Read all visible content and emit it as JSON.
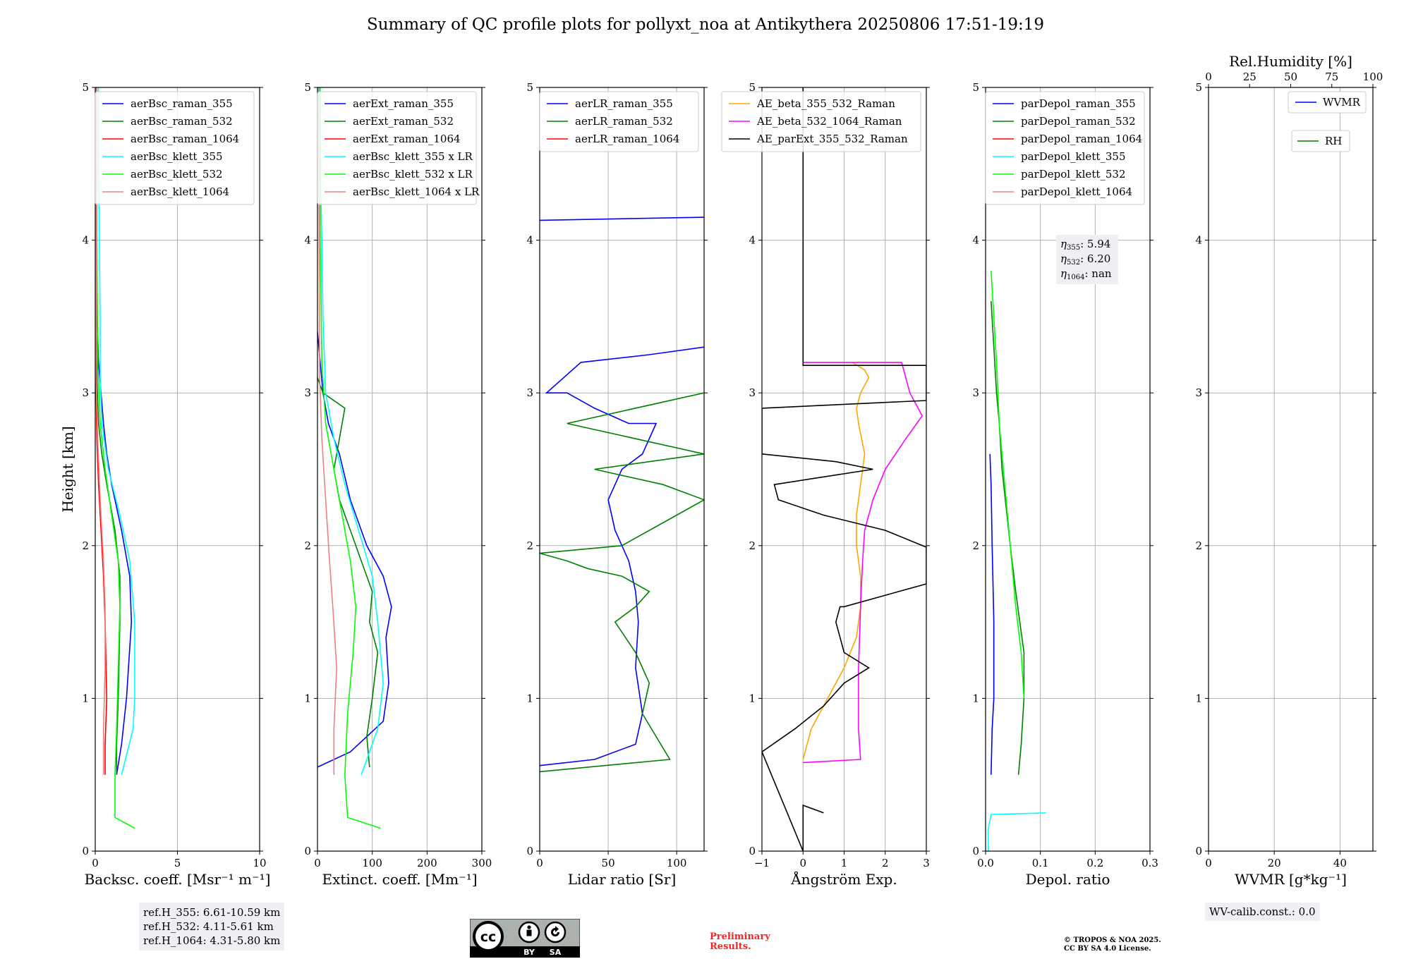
{
  "figure": {
    "title": "Summary of QC profile plots for pollyxt_noa at Antikythera 20250806 17:51-19:19"
  },
  "ref_box": {
    "line1": "ref.H_355: 6.61-10.59 km",
    "line2": "ref.H_532: 4.11-5.61 km",
    "line3": "ref.H_1064: 4.31-5.80 km"
  },
  "wv_calib": "WV-calib.const.: 0.0",
  "preliminary": {
    "line1": "Preliminary",
    "line2": "Results."
  },
  "copyright": {
    "line1": "© TROPOS & NOA 2025.",
    "line2": "CC BY SA 4.0 License."
  },
  "cc_badge": {
    "by": "BY",
    "sa": "SA",
    "cc": "cc"
  },
  "colors": {
    "blue": "#0000ff",
    "green": "#008000",
    "red": "#ff0000",
    "cyan": "#00ffff",
    "lime": "#00ff00",
    "salmon": "#f08080",
    "orange": "#ffa500",
    "magenta": "#ff00ff",
    "black": "#000000",
    "grid": "#b0b0b0"
  },
  "chart_data": [
    {
      "type": "line",
      "xlabel": "Backsc. coeff. [Msr⁻¹ m⁻¹]",
      "ylabel": "Height [km]",
      "xlim": [
        0,
        10
      ],
      "ylim": [
        0,
        5
      ],
      "xticks": [
        0,
        5,
        10
      ],
      "yticks": [
        0,
        1,
        2,
        3,
        4,
        5
      ],
      "grid": true,
      "legend_position": "top-right",
      "series": [
        {
          "name": "aerBsc_raman_355",
          "color": "blue",
          "x": [
            1.3,
            1.6,
            1.9,
            2.2,
            2.1,
            1.6,
            1.0,
            0.7,
            0.5,
            0.35,
            0.2,
            0.1,
            0.05,
            0.05
          ],
          "y": [
            0.5,
            0.7,
            1.0,
            1.5,
            1.8,
            2.1,
            2.4,
            2.6,
            2.8,
            3.0,
            3.2,
            3.5,
            4.0,
            5.0
          ]
        },
        {
          "name": "aerBsc_raman_532",
          "color": "green",
          "x": [
            1.3,
            1.3,
            1.4,
            1.5,
            1.5,
            1.2,
            0.7,
            0.4,
            0.2,
            0.1,
            0.05,
            0.05
          ],
          "y": [
            0.5,
            0.7,
            1.0,
            1.5,
            1.8,
            2.1,
            2.4,
            2.6,
            2.8,
            3.1,
            3.5,
            5.0
          ]
        },
        {
          "name": "aerBsc_raman_1064",
          "color": "red",
          "x": [
            0.6,
            0.6,
            0.7,
            0.6,
            0.5,
            0.35,
            0.2,
            0.1,
            0.05,
            0.05
          ],
          "y": [
            0.5,
            0.7,
            1.0,
            1.5,
            1.8,
            2.1,
            2.4,
            2.7,
            3.0,
            5.0
          ]
        },
        {
          "name": "aerBsc_klett_355",
          "color": "cyan",
          "x": [
            1.6,
            2.3,
            2.4,
            2.4,
            2.1,
            1.5,
            0.8,
            0.4,
            0.3,
            0.3,
            0.25,
            0.2,
            0.2
          ],
          "y": [
            0.5,
            0.8,
            1.0,
            1.5,
            1.9,
            2.2,
            2.5,
            2.8,
            3.1,
            3.5,
            4.0,
            4.5,
            5.0
          ]
        },
        {
          "name": "aerBsc_klett_532",
          "color": "lime",
          "x": [
            2.4,
            1.2,
            1.2,
            1.3,
            1.4,
            1.5,
            1.4,
            1.0,
            0.6,
            0.3,
            0.15,
            0.1,
            0.1
          ],
          "y": [
            0.15,
            0.22,
            0.5,
            0.8,
            1.2,
            1.6,
            1.9,
            2.2,
            2.5,
            2.8,
            3.2,
            4.0,
            5.0
          ]
        },
        {
          "name": "aerBsc_klett_1064",
          "color": "salmon",
          "x": [
            0.5,
            0.5,
            0.6,
            0.6,
            0.5,
            0.3,
            0.15,
            0.05,
            0.05
          ],
          "y": [
            0.5,
            0.8,
            1.2,
            1.6,
            1.9,
            2.3,
            2.7,
            3.1,
            5.0
          ]
        }
      ]
    },
    {
      "type": "line",
      "xlabel": "Extinct. coeff. [Mm⁻¹]",
      "xlim": [
        0,
        300
      ],
      "ylim": [
        0,
        5
      ],
      "xticks": [
        0,
        100,
        200,
        300
      ],
      "yticks": [
        0,
        1,
        2,
        3,
        4,
        5
      ],
      "grid": true,
      "legend_position": "top-right",
      "series": [
        {
          "name": "aerExt_raman_355",
          "color": "blue",
          "x": [
            0,
            60,
            120,
            130,
            125,
            135,
            120,
            90,
            60,
            40,
            20,
            10,
            5,
            0
          ],
          "y": [
            0.55,
            0.65,
            0.85,
            1.1,
            1.4,
            1.6,
            1.8,
            2.0,
            2.3,
            2.6,
            2.8,
            3.0,
            3.2,
            3.4
          ]
        },
        {
          "name": "aerExt_raman_532",
          "color": "green",
          "x": [
            95,
            90,
            100,
            110,
            95,
            100,
            80,
            60,
            40,
            30,
            40,
            50,
            10,
            0
          ],
          "y": [
            0.55,
            0.75,
            1.0,
            1.3,
            1.5,
            1.7,
            1.9,
            2.1,
            2.3,
            2.5,
            2.7,
            2.9,
            3.0,
            3.1
          ]
        },
        {
          "name": "aerExt_raman_1064",
          "color": "red",
          "x": [],
          "y": []
        },
        {
          "name": "aerBsc_klett_355 x LR",
          "color": "cyan",
          "x": [
            80,
            110,
            120,
            110,
            100,
            75,
            50,
            30,
            15,
            10,
            8,
            5,
            3
          ],
          "y": [
            0.5,
            0.8,
            1.1,
            1.5,
            1.8,
            2.1,
            2.4,
            2.7,
            3.0,
            3.5,
            4.0,
            4.5,
            5.0
          ]
        },
        {
          "name": "aerBsc_klett_532 x LR",
          "color": "lime",
          "x": [
            115,
            55,
            50,
            55,
            65,
            70,
            60,
            45,
            30,
            15,
            8,
            5,
            5
          ],
          "y": [
            0.15,
            0.22,
            0.5,
            0.9,
            1.3,
            1.6,
            1.9,
            2.2,
            2.5,
            2.8,
            3.2,
            4.0,
            5.0
          ]
        },
        {
          "name": "aerBsc_klett_1064 x LR",
          "color": "salmon",
          "x": [
            30,
            30,
            35,
            28,
            22,
            15,
            8,
            4,
            2
          ],
          "y": [
            0.5,
            0.8,
            1.2,
            1.6,
            1.9,
            2.3,
            2.7,
            3.1,
            5.0
          ]
        }
      ]
    },
    {
      "type": "line",
      "xlabel": "Lidar ratio [Sr]",
      "xlim": [
        0,
        120
      ],
      "ylim": [
        0,
        5
      ],
      "xticks": [
        0,
        50,
        100
      ],
      "yticks": [
        0,
        1,
        2,
        3,
        4,
        5
      ],
      "grid": true,
      "legend_position": "top-right",
      "series": [
        {
          "name": "aerLR_raman_355",
          "color": "blue",
          "x": [
            0,
            40,
            70,
            75,
            70,
            72,
            70,
            65,
            55,
            50,
            60,
            75,
            85,
            65,
            40,
            20,
            5,
            30,
            80,
            120
          ],
          "y": [
            0.56,
            0.6,
            0.7,
            0.9,
            1.2,
            1.5,
            1.7,
            1.9,
            2.1,
            2.3,
            2.5,
            2.6,
            2.8,
            2.8,
            2.9,
            3.0,
            3.0,
            3.2,
            3.25,
            3.3
          ]
        },
        {
          "name": "aerLR_raman_532",
          "color": "green",
          "x": [
            0,
            95,
            85,
            75,
            80,
            70,
            55,
            70,
            80,
            60,
            35,
            20,
            0,
            60,
            100,
            120,
            90,
            40,
            120,
            20,
            120
          ],
          "y": [
            0.52,
            0.6,
            0.75,
            0.9,
            1.1,
            1.3,
            1.5,
            1.6,
            1.7,
            1.8,
            1.85,
            1.9,
            1.95,
            2.0,
            2.2,
            2.3,
            2.4,
            2.5,
            2.6,
            2.8,
            3.0
          ]
        },
        {
          "name": "aerLR_raman_1064",
          "color": "red",
          "x": [],
          "y": []
        }
      ],
      "extra_segments": [
        {
          "color": "blue",
          "x": [
            0,
            120
          ],
          "y": [
            4.13,
            4.15
          ]
        }
      ]
    },
    {
      "type": "line",
      "xlabel": "Ångström Exp.",
      "xlim": [
        -1,
        3
      ],
      "ylim": [
        0,
        5
      ],
      "xticks": [
        -1,
        0,
        1,
        2,
        3
      ],
      "yticks": [
        0,
        1,
        2,
        3,
        4,
        5
      ],
      "grid": true,
      "legend_position": "top-right",
      "series": [
        {
          "name": "AE_beta_355_532_Raman",
          "color": "orange",
          "x": [
            0.0,
            0.2,
            0.6,
            1.0,
            1.3,
            1.4,
            1.4,
            1.3,
            1.3,
            1.4,
            1.5,
            1.35,
            1.3,
            1.4,
            1.6,
            1.5,
            1.2
          ],
          "y": [
            0.6,
            0.8,
            1.0,
            1.2,
            1.4,
            1.6,
            1.8,
            2.0,
            2.2,
            2.4,
            2.6,
            2.8,
            2.9,
            3.0,
            3.1,
            3.15,
            3.2
          ]
        },
        {
          "name": "AE_beta_532_1064_Raman",
          "color": "magenta",
          "x": [
            0.0,
            1.4,
            1.35,
            1.35,
            1.4,
            1.45,
            1.5,
            1.7,
            2.0,
            2.5,
            2.9,
            2.6,
            2.4,
            1.0,
            0.0
          ],
          "y": [
            0.58,
            0.6,
            0.8,
            1.2,
            1.6,
            1.9,
            2.1,
            2.3,
            2.5,
            2.7,
            2.85,
            3.0,
            3.2,
            3.2,
            3.2
          ]
        },
        {
          "name": "AE_parExt_355_532_Raman",
          "color": "black",
          "x": [
            0.5,
            0.0,
            0.0,
            -1.0,
            -0.2,
            0.5,
            1.0,
            1.6,
            1.0,
            0.8,
            0.9,
            1.0,
            3.0,
            3.0,
            2.0,
            0.5,
            -0.6,
            -0.7,
            0.5,
            1.7,
            0.8,
            -1.0,
            -1.0,
            3.0,
            3.0,
            0.0,
            0.0,
            0.0
          ],
          "y": [
            0.25,
            0.3,
            0.0,
            0.65,
            0.8,
            0.95,
            1.1,
            1.2,
            1.3,
            1.5,
            1.6,
            1.6,
            1.75,
            1.99,
            2.1,
            2.2,
            2.3,
            2.4,
            2.45,
            2.5,
            2.55,
            2.6,
            2.9,
            2.95,
            3.18,
            3.18,
            3.18,
            5.0
          ]
        }
      ]
    },
    {
      "type": "line",
      "xlabel": "Depol. ratio",
      "xlim": [
        0,
        0.3
      ],
      "ylim": [
        0,
        5
      ],
      "xticks": [
        0.0,
        0.1,
        0.2,
        0.3
      ],
      "xticklabels": [
        "0.0",
        "0.1",
        "0.2",
        "0.3"
      ],
      "yticks": [
        0,
        1,
        2,
        3,
        4,
        5
      ],
      "grid": true,
      "legend_position": "top-right",
      "annotation": {
        "eta355": "5.94",
        "eta532": "6.20",
        "eta1064": "nan"
      },
      "series": [
        {
          "name": "parDepol_raman_355",
          "color": "blue",
          "x": [
            0.01,
            0.012,
            0.015,
            0.015,
            0.012,
            0.01,
            0.008
          ],
          "y": [
            0.5,
            0.8,
            1.0,
            1.5,
            2.0,
            2.4,
            2.6
          ]
        },
        {
          "name": "parDepol_raman_532",
          "color": "green",
          "x": [
            0.06,
            0.065,
            0.07,
            0.07,
            0.055,
            0.045,
            0.03,
            0.025,
            0.02,
            0.015,
            0.01
          ],
          "y": [
            0.5,
            0.7,
            1.0,
            1.3,
            1.7,
            2.0,
            2.5,
            2.8,
            3.0,
            3.3,
            3.6
          ]
        },
        {
          "name": "parDepol_raman_1064",
          "color": "red",
          "x": [],
          "y": []
        },
        {
          "name": "parDepol_klett_355",
          "color": "cyan",
          "x": [
            0.11,
            0.01,
            0.005,
            0.005
          ],
          "y": [
            0.25,
            0.24,
            0.15,
            0.0
          ]
        },
        {
          "name": "parDepol_klett_532",
          "color": "lime",
          "x": [
            0.07,
            0.065,
            0.055,
            0.045,
            0.035,
            0.025,
            0.02,
            0.01
          ],
          "y": [
            1.0,
            1.3,
            1.6,
            2.0,
            2.4,
            2.8,
            3.2,
            3.8
          ]
        },
        {
          "name": "parDepol_klett_1064",
          "color": "salmon",
          "x": [],
          "y": []
        }
      ]
    },
    {
      "type": "line",
      "xlabel": "WVMR [g*kg⁻¹]",
      "xlim": [
        0,
        50
      ],
      "ylim": [
        0,
        5
      ],
      "xticks": [
        0,
        20,
        40
      ],
      "yticks": [
        0,
        1,
        2,
        3,
        4,
        5
      ],
      "top_axis": {
        "label": "Rel.Humidity [%]",
        "xlim": [
          0,
          100
        ],
        "xticks": [
          0,
          25,
          50,
          75,
          100
        ]
      },
      "grid": true,
      "legend_position": "top-right",
      "series": [
        {
          "name": "WVMR",
          "color": "blue",
          "x": [],
          "y": []
        },
        {
          "name": "RH",
          "color": "green",
          "x": [],
          "y": []
        }
      ]
    }
  ]
}
